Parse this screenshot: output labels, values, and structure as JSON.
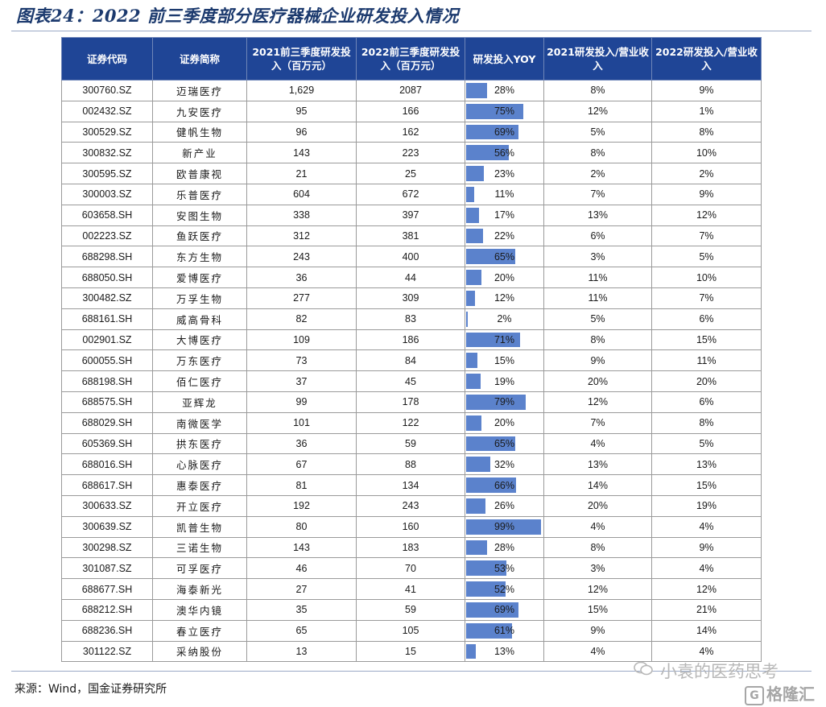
{
  "title": "图表24：2022 前三季度部分医疗器械企业研发投入情况",
  "headers": [
    "证券代码",
    "证券简称",
    "2021前三季度研发投入（百万元）",
    "2022前三季度研发投入（百万元）",
    "研发投入YOY",
    "2021研发投入/营业收入",
    "2022研发投入/营业收入"
  ],
  "source": "来源：Wind，国金证券研究所",
  "watermark": "小袁的医药思考",
  "logo": "格隆汇",
  "colors": {
    "header_bg": "#1f4596",
    "bar": "#5b82cc"
  },
  "chart_data": {
    "type": "table",
    "title": "2022 前三季度部分医疗器械企业研发投入情况",
    "columns": [
      "证券代码",
      "证券简称",
      "2021前三季度研发投入（百万元）",
      "2022前三季度研发投入（百万元）",
      "研发投入YOY",
      "2021研发投入/营业收入",
      "2022研发投入/营业收入"
    ],
    "bar_column": "研发投入YOY",
    "rows": [
      {
        "code": "300760.SZ",
        "name": "迈瑞医疗",
        "rd2021": "1,629",
        "rd2022": "2087",
        "yoy": 28,
        "ratio2021": "8%",
        "ratio2022": "9%"
      },
      {
        "code": "002432.SZ",
        "name": "九安医疗",
        "rd2021": "95",
        "rd2022": "166",
        "yoy": 75,
        "ratio2021": "12%",
        "ratio2022": "1%"
      },
      {
        "code": "300529.SZ",
        "name": "健帆生物",
        "rd2021": "96",
        "rd2022": "162",
        "yoy": 69,
        "ratio2021": "5%",
        "ratio2022": "8%"
      },
      {
        "code": "300832.SZ",
        "name": "新产业",
        "rd2021": "143",
        "rd2022": "223",
        "yoy": 56,
        "ratio2021": "8%",
        "ratio2022": "10%"
      },
      {
        "code": "300595.SZ",
        "name": "欧普康视",
        "rd2021": "21",
        "rd2022": "25",
        "yoy": 23,
        "ratio2021": "2%",
        "ratio2022": "2%"
      },
      {
        "code": "300003.SZ",
        "name": "乐普医疗",
        "rd2021": "604",
        "rd2022": "672",
        "yoy": 11,
        "ratio2021": "7%",
        "ratio2022": "9%"
      },
      {
        "code": "603658.SH",
        "name": "安图生物",
        "rd2021": "338",
        "rd2022": "397",
        "yoy": 17,
        "ratio2021": "13%",
        "ratio2022": "12%"
      },
      {
        "code": "002223.SZ",
        "name": "鱼跃医疗",
        "rd2021": "312",
        "rd2022": "381",
        "yoy": 22,
        "ratio2021": "6%",
        "ratio2022": "7%"
      },
      {
        "code": "688298.SH",
        "name": "东方生物",
        "rd2021": "243",
        "rd2022": "400",
        "yoy": 65,
        "ratio2021": "3%",
        "ratio2022": "5%"
      },
      {
        "code": "688050.SH",
        "name": "爱博医疗",
        "rd2021": "36",
        "rd2022": "44",
        "yoy": 20,
        "ratio2021": "11%",
        "ratio2022": "10%"
      },
      {
        "code": "300482.SZ",
        "name": "万孚生物",
        "rd2021": "277",
        "rd2022": "309",
        "yoy": 12,
        "ratio2021": "11%",
        "ratio2022": "7%"
      },
      {
        "code": "688161.SH",
        "name": "威高骨科",
        "rd2021": "82",
        "rd2022": "83",
        "yoy": 2,
        "ratio2021": "5%",
        "ratio2022": "6%"
      },
      {
        "code": "002901.SZ",
        "name": "大博医疗",
        "rd2021": "109",
        "rd2022": "186",
        "yoy": 71,
        "ratio2021": "8%",
        "ratio2022": "15%"
      },
      {
        "code": "600055.SH",
        "name": "万东医疗",
        "rd2021": "73",
        "rd2022": "84",
        "yoy": 15,
        "ratio2021": "9%",
        "ratio2022": "11%"
      },
      {
        "code": "688198.SH",
        "name": "佰仁医疗",
        "rd2021": "37",
        "rd2022": "45",
        "yoy": 19,
        "ratio2021": "20%",
        "ratio2022": "20%"
      },
      {
        "code": "688575.SH",
        "name": "亚辉龙",
        "rd2021": "99",
        "rd2022": "178",
        "yoy": 79,
        "ratio2021": "12%",
        "ratio2022": "6%"
      },
      {
        "code": "688029.SH",
        "name": "南微医学",
        "rd2021": "101",
        "rd2022": "122",
        "yoy": 20,
        "ratio2021": "7%",
        "ratio2022": "8%"
      },
      {
        "code": "605369.SH",
        "name": "拱东医疗",
        "rd2021": "36",
        "rd2022": "59",
        "yoy": 65,
        "ratio2021": "4%",
        "ratio2022": "5%"
      },
      {
        "code": "688016.SH",
        "name": "心脉医疗",
        "rd2021": "67",
        "rd2022": "88",
        "yoy": 32,
        "ratio2021": "13%",
        "ratio2022": "13%"
      },
      {
        "code": "688617.SH",
        "name": "惠泰医疗",
        "rd2021": "81",
        "rd2022": "134",
        "yoy": 66,
        "ratio2021": "14%",
        "ratio2022": "15%"
      },
      {
        "code": "300633.SZ",
        "name": "开立医疗",
        "rd2021": "192",
        "rd2022": "243",
        "yoy": 26,
        "ratio2021": "20%",
        "ratio2022": "19%"
      },
      {
        "code": "300639.SZ",
        "name": "凯普生物",
        "rd2021": "80",
        "rd2022": "160",
        "yoy": 99,
        "ratio2021": "4%",
        "ratio2022": "4%"
      },
      {
        "code": "300298.SZ",
        "name": "三诺生物",
        "rd2021": "143",
        "rd2022": "183",
        "yoy": 28,
        "ratio2021": "8%",
        "ratio2022": "9%"
      },
      {
        "code": "301087.SZ",
        "name": "可孚医疗",
        "rd2021": "46",
        "rd2022": "70",
        "yoy": 53,
        "ratio2021": "3%",
        "ratio2022": "4%"
      },
      {
        "code": "688677.SH",
        "name": "海泰新光",
        "rd2021": "27",
        "rd2022": "41",
        "yoy": 52,
        "ratio2021": "12%",
        "ratio2022": "12%"
      },
      {
        "code": "688212.SH",
        "name": "澳华内镜",
        "rd2021": "35",
        "rd2022": "59",
        "yoy": 69,
        "ratio2021": "15%",
        "ratio2022": "21%"
      },
      {
        "code": "688236.SH",
        "name": "春立医疗",
        "rd2021": "65",
        "rd2022": "105",
        "yoy": 61,
        "ratio2021": "9%",
        "ratio2022": "14%"
      },
      {
        "code": "301122.SZ",
        "name": "采纳股份",
        "rd2021": "13",
        "rd2022": "15",
        "yoy": 13,
        "ratio2021": "4%",
        "ratio2022": "4%"
      }
    ]
  }
}
